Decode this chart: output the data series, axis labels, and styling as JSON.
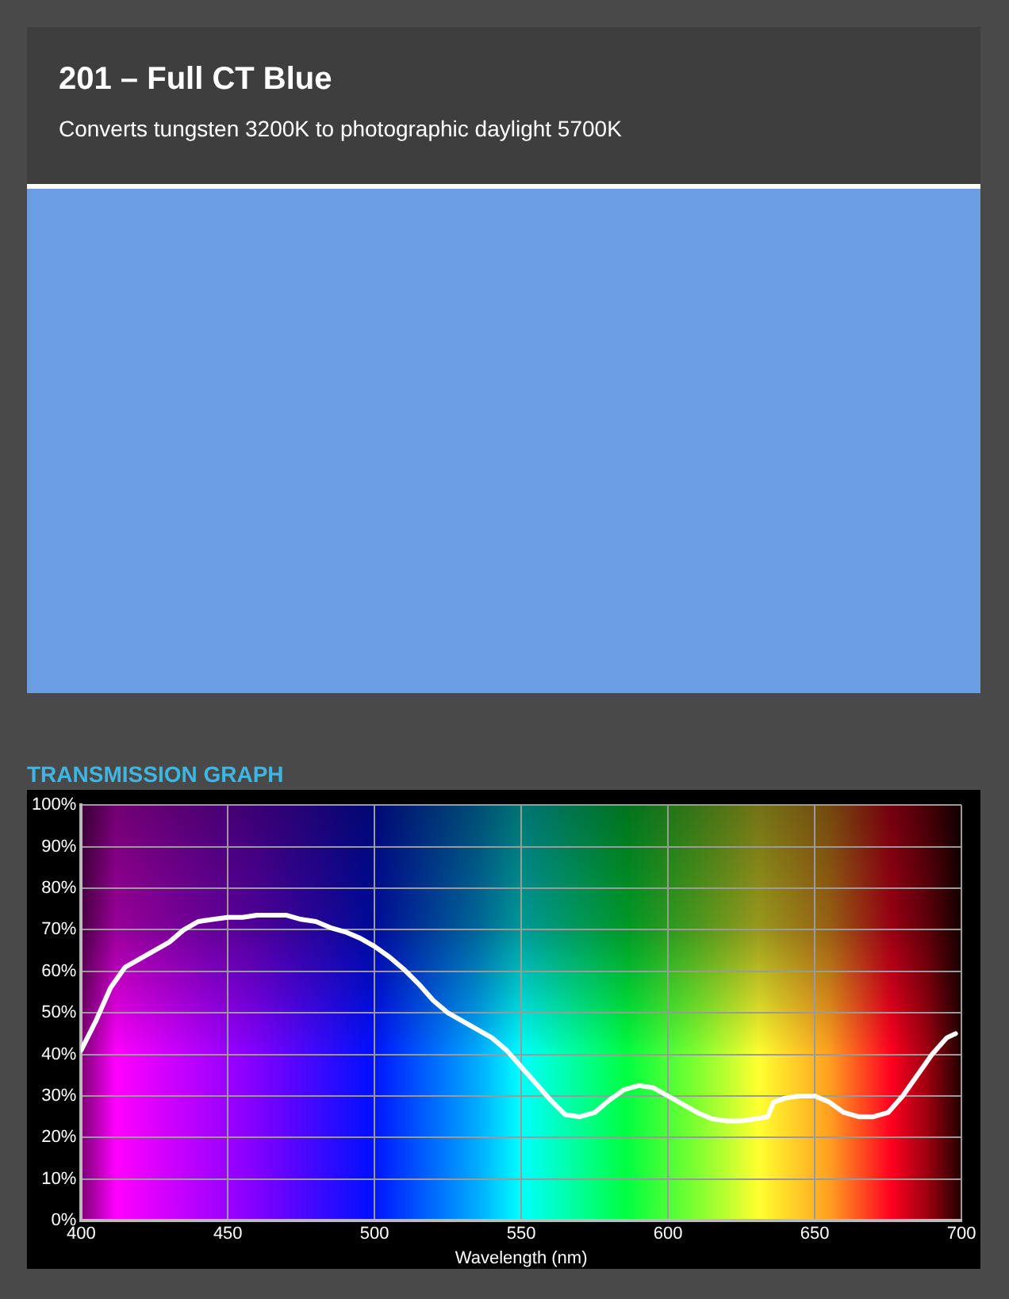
{
  "chart_data": {
    "type": "line",
    "title": "201 – Full CT Blue",
    "subtitle": "Converts tungsten 3200K to photographic daylight 5700K",
    "annotations": [
      "TRANSMISSION GRAPH"
    ],
    "xlabel": "Wavelength (nm)",
    "x": [
      400,
      405,
      410,
      415,
      420,
      425,
      430,
      435,
      440,
      445,
      450,
      455,
      460,
      465,
      470,
      475,
      480,
      485,
      490,
      495,
      500,
      505,
      510,
      515,
      520,
      525,
      530,
      535,
      540,
      545,
      550,
      555,
      560,
      565,
      570,
      575,
      580,
      585,
      590,
      595,
      600,
      605,
      610,
      615,
      620,
      625,
      630,
      634,
      636,
      640,
      645,
      650,
      655,
      660,
      665,
      670,
      675,
      680,
      685,
      690,
      695,
      698
    ],
    "series": [
      {
        "color": "#ffffff",
        "values": [
          41,
          48,
          56,
          61,
          63,
          65,
          67,
          70,
          72,
          72.5,
          73,
          73,
          73.5,
          73.5,
          73.5,
          72.5,
          72,
          70.5,
          69.5,
          68,
          66,
          63.5,
          60.5,
          57,
          53,
          50,
          48,
          46,
          44,
          41,
          37,
          33,
          29,
          25.5,
          25,
          26,
          29,
          31.5,
          32.5,
          32,
          30,
          28,
          26,
          24.5,
          24,
          24,
          24.5,
          25,
          28.5,
          29.5,
          30,
          30,
          28.5,
          26,
          25,
          25,
          26,
          30,
          35,
          40,
          44,
          45
        ]
      }
    ],
    "xlim": [
      400,
      700
    ],
    "xticks": [
      400,
      450,
      500,
      550,
      600,
      650,
      700
    ],
    "ylim": [
      0,
      100
    ],
    "yticks": [
      {
        "value": 0,
        "label": "0%"
      },
      {
        "value": 10,
        "label": "10%"
      },
      {
        "value": 20,
        "label": "20%"
      },
      {
        "value": 30,
        "label": "30%"
      },
      {
        "value": 40,
        "label": "40%"
      },
      {
        "value": 50,
        "label": "50%"
      },
      {
        "value": 60,
        "label": "60%"
      },
      {
        "value": 70,
        "label": "70%"
      },
      {
        "value": 80,
        "label": "80%"
      },
      {
        "value": 90,
        "label": "90%"
      },
      {
        "value": 100,
        "label": "100%"
      }
    ],
    "grid": true,
    "legend": false,
    "marker": "none",
    "line_style": "solid"
  }
}
